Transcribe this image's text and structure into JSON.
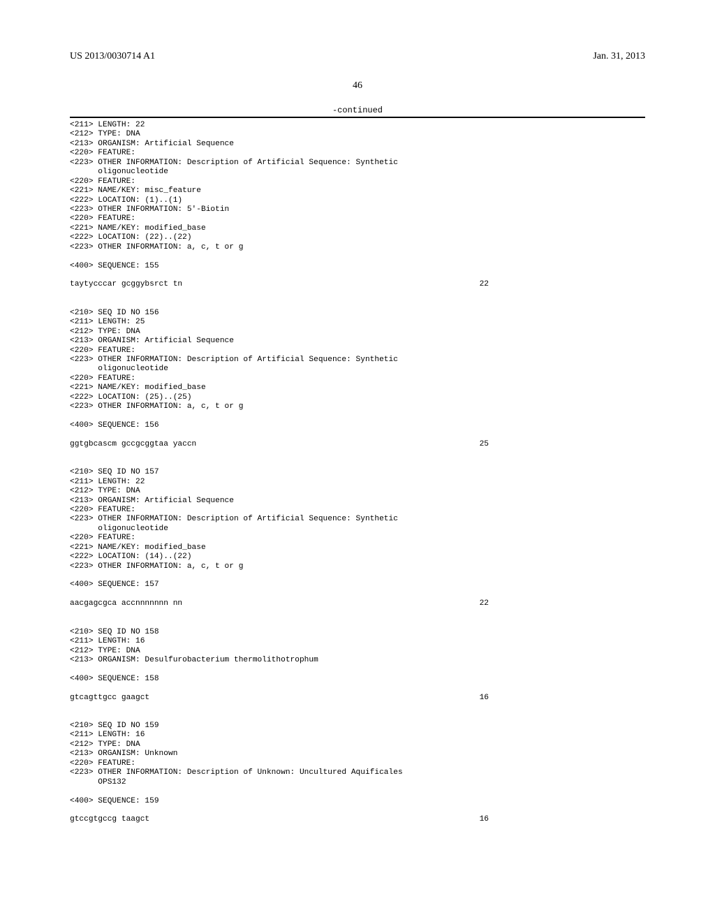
{
  "header": {
    "pub_number": "US 2013/0030714 A1",
    "pub_date": "Jan. 31, 2013"
  },
  "page_number": "46",
  "continued_label": "-continued",
  "entries": [
    {
      "lines": [
        "<211> LENGTH: 22",
        "<212> TYPE: DNA",
        "<213> ORGANISM: Artificial Sequence",
        "<220> FEATURE:",
        "<223> OTHER INFORMATION: Description of Artificial Sequence: Synthetic",
        "      oligonucleotide",
        "<220> FEATURE:",
        "<221> NAME/KEY: misc_feature",
        "<222> LOCATION: (1)..(1)",
        "<223> OTHER INFORMATION: 5'-Biotin",
        "<220> FEATURE:",
        "<221> NAME/KEY: modified_base",
        "<222> LOCATION: (22)..(22)",
        "<223> OTHER INFORMATION: a, c, t or g",
        "",
        "<400> SEQUENCE: 155"
      ],
      "sequence_line": "taytycccar gcggybsrct tn",
      "sequence_len": "22"
    },
    {
      "lines": [
        "<210> SEQ ID NO 156",
        "<211> LENGTH: 25",
        "<212> TYPE: DNA",
        "<213> ORGANISM: Artificial Sequence",
        "<220> FEATURE:",
        "<223> OTHER INFORMATION: Description of Artificial Sequence: Synthetic",
        "      oligonucleotide",
        "<220> FEATURE:",
        "<221> NAME/KEY: modified_base",
        "<222> LOCATION: (25)..(25)",
        "<223> OTHER INFORMATION: a, c, t or g",
        "",
        "<400> SEQUENCE: 156"
      ],
      "sequence_line": "ggtgbcascm gccgcggtaa yaccn",
      "sequence_len": "25"
    },
    {
      "lines": [
        "<210> SEQ ID NO 157",
        "<211> LENGTH: 22",
        "<212> TYPE: DNA",
        "<213> ORGANISM: Artificial Sequence",
        "<220> FEATURE:",
        "<223> OTHER INFORMATION: Description of Artificial Sequence: Synthetic",
        "      oligonucleotide",
        "<220> FEATURE:",
        "<221> NAME/KEY: modified_base",
        "<222> LOCATION: (14)..(22)",
        "<223> OTHER INFORMATION: a, c, t or g",
        "",
        "<400> SEQUENCE: 157"
      ],
      "sequence_line": "aacgagcgca accnnnnnnn nn",
      "sequence_len": "22"
    },
    {
      "lines": [
        "<210> SEQ ID NO 158",
        "<211> LENGTH: 16",
        "<212> TYPE: DNA",
        "<213> ORGANISM: Desulfurobacterium thermolithotrophum",
        "",
        "<400> SEQUENCE: 158"
      ],
      "sequence_line": "gtcagttgcc gaagct",
      "sequence_len": "16"
    },
    {
      "lines": [
        "<210> SEQ ID NO 159",
        "<211> LENGTH: 16",
        "<212> TYPE: DNA",
        "<213> ORGANISM: Unknown",
        "<220> FEATURE:",
        "<223> OTHER INFORMATION: Description of Unknown: Uncultured Aquificales",
        "      OPS132",
        "",
        "<400> SEQUENCE: 159"
      ],
      "sequence_line": "gtccgtgccg taagct",
      "sequence_len": "16"
    }
  ]
}
